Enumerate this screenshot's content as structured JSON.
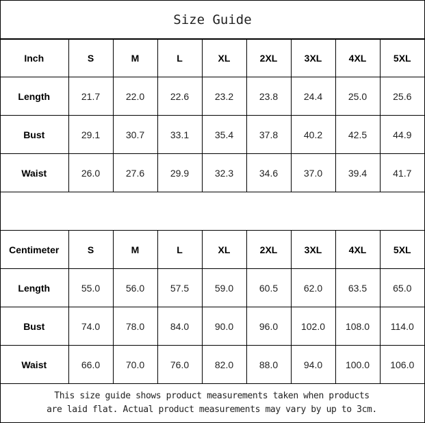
{
  "title": "Size Guide",
  "sizes": [
    "S",
    "M",
    "L",
    "XL",
    "2XL",
    "3XL",
    "4XL",
    "5XL"
  ],
  "inch": {
    "unit_label": "Inch",
    "rows": [
      {
        "label": "Length",
        "values": [
          "21.7",
          "22.0",
          "22.6",
          "23.2",
          "23.8",
          "24.4",
          "25.0",
          "25.6"
        ]
      },
      {
        "label": "Bust",
        "values": [
          "29.1",
          "30.7",
          "33.1",
          "35.4",
          "37.8",
          "40.2",
          "42.5",
          "44.9"
        ]
      },
      {
        "label": "Waist",
        "values": [
          "26.0",
          "27.6",
          "29.9",
          "32.3",
          "34.6",
          "37.0",
          "39.4",
          "41.7"
        ]
      }
    ]
  },
  "cm": {
    "unit_label": "Centimeter",
    "rows": [
      {
        "label": "Length",
        "values": [
          "55.0",
          "56.0",
          "57.5",
          "59.0",
          "60.5",
          "62.0",
          "63.5",
          "65.0"
        ]
      },
      {
        "label": "Bust",
        "values": [
          "74.0",
          "78.0",
          "84.0",
          "90.0",
          "96.0",
          "102.0",
          "108.0",
          "114.0"
        ]
      },
      {
        "label": "Waist",
        "values": [
          "66.0",
          "70.0",
          "76.0",
          "82.0",
          "88.0",
          "94.0",
          "100.0",
          "106.0"
        ]
      }
    ]
  },
  "note": {
    "line1": "This size guide shows product measurements taken when products",
    "line2": "are laid flat. Actual product measurements may vary by up to 3cm."
  }
}
